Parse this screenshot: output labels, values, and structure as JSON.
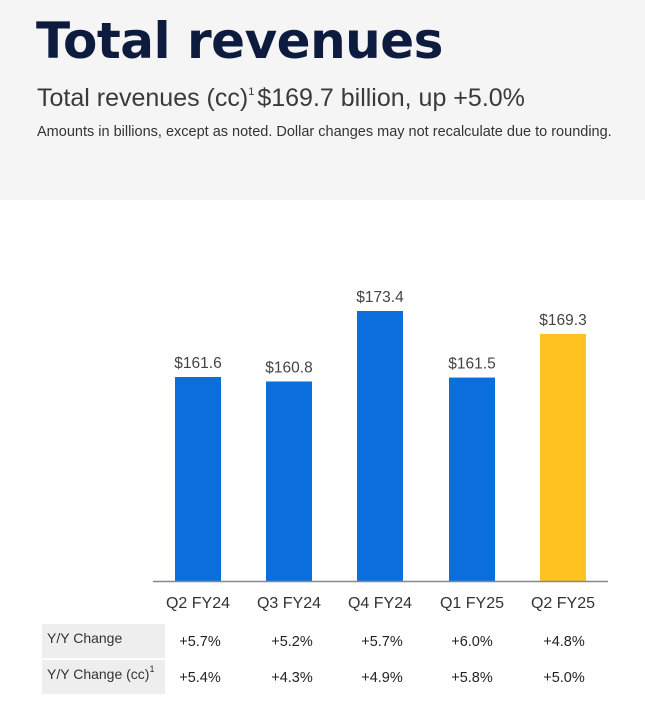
{
  "header": {
    "title": "Total revenues",
    "subtitle_main": "Total revenues (cc)",
    "subtitle_footnote": "1",
    "subtitle_value": "$169.7 billion, up +5.0%",
    "note": "Amounts in billions, except as noted.  Dollar changes may not recalculate due to rounding."
  },
  "colors": {
    "bar_primary": "#0a6fdc",
    "bar_highlight": "#ffc220",
    "title": "#0d1b3e",
    "axis": "#888888"
  },
  "chart_data": {
    "type": "bar",
    "categories": [
      "Q2 FY24",
      "Q3 FY24",
      "Q4 FY24",
      "Q1 FY25",
      "Q2 FY25"
    ],
    "values": [
      161.6,
      160.8,
      173.4,
      161.5,
      169.3
    ],
    "value_labels": [
      "$161.6",
      "$160.8",
      "$173.4",
      "$161.5",
      "$169.3"
    ],
    "highlight_index": 4,
    "title": "",
    "xlabel": "",
    "ylabel": "",
    "grid": false
  },
  "table": {
    "rows": [
      {
        "label": "Y/Y Change",
        "footnote": "",
        "values": [
          "+5.7%",
          "+5.2%",
          "+5.7%",
          "+6.0%",
          "+4.8%"
        ]
      },
      {
        "label": "Y/Y Change (cc)",
        "footnote": "1",
        "values": [
          "+5.4%",
          "+4.3%",
          "+4.9%",
          "+5.8%",
          "+5.0%"
        ]
      }
    ]
  }
}
